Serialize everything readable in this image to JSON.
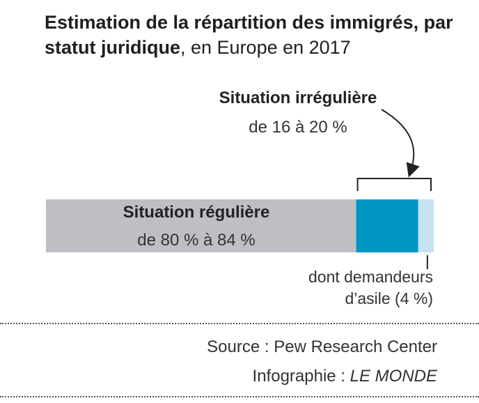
{
  "title": {
    "bold": "Estimation de la répartition des immigrés, par statut juridique",
    "normal": ", en Europe en 2017"
  },
  "chart_data": {
    "type": "bar",
    "orientation": "horizontal-stacked",
    "xlim": [
      0,
      100
    ],
    "unit": "%",
    "segments": [
      {
        "name": "Situation régulière",
        "value": 80,
        "range_label": "de 80 % à 84 %",
        "color": "#bdbfc4"
      },
      {
        "name": "Situation irrégulière",
        "value": 16,
        "range_label": "de 16 à 20 %",
        "color": "#0097c4"
      },
      {
        "name": "dont demandeurs d’asile (4 %)",
        "value": 4,
        "color": "#c5e3f1"
      }
    ],
    "annotations": {
      "irregular_title": "Situation irrégulière",
      "irregular_range": "de 16 à 20 %",
      "asylum_line1": "dont demandeurs",
      "asylum_line2": "d’asile (4 %)"
    }
  },
  "footer": {
    "source": "Source : Pew Research Center",
    "credit_prefix": "Infographie : ",
    "credit_name": "LE MONDE"
  },
  "colors": {
    "regular": "#bdbfc4",
    "irregular": "#0097c4",
    "asylum": "#c5e3f1",
    "text": "#222222"
  }
}
